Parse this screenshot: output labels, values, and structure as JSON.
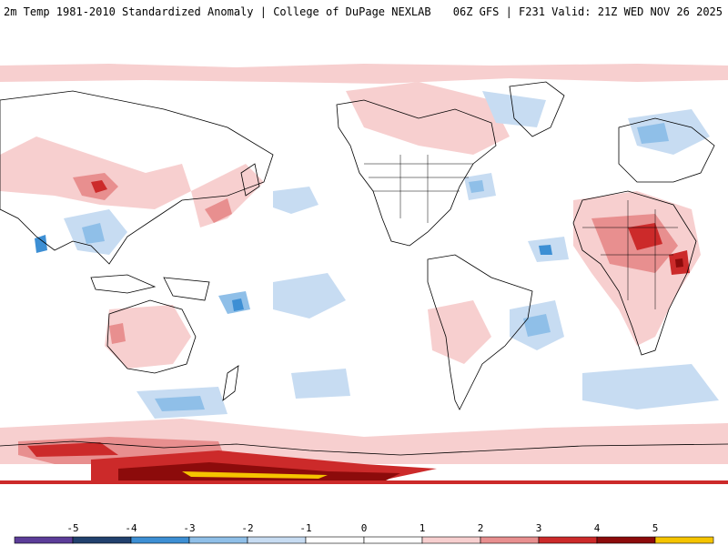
{
  "header": {
    "left": "2m Temp 1981-2010 Standardized Anomaly | College of DuPage NEXLAB",
    "right": "06Z GFS | F231 Valid: 21Z WED NOV 26 2025"
  },
  "map": {
    "field": "2m temperature standardized anomaly",
    "model": "GFS",
    "projection": "equirectangular global, Pacific-centered"
  },
  "legend": {
    "ticks": [
      "-5",
      "-4",
      "-3",
      "-2",
      "-1",
      "0",
      "1",
      "2",
      "3",
      "4",
      "5"
    ],
    "colors": [
      "#5c3d99",
      "#22416e",
      "#3d8fd4",
      "#8fbfe8",
      "#c7dcf2",
      "#ffffff",
      "#ffffff",
      "#f7cfcf",
      "#e88f8f",
      "#cc2a2a",
      "#8c0b0b",
      "#f5c400"
    ]
  },
  "anomaly_palette": {
    "cold_strong": "#3d8fd4",
    "cold_mid": "#8fbfe8",
    "cold_light": "#c7dcf2",
    "warm_light": "#f7cfcf",
    "warm_mid": "#e88f8f",
    "warm_strong": "#cc2a2a",
    "warm_extreme": "#8c0b0b",
    "max": "#f5c400"
  }
}
